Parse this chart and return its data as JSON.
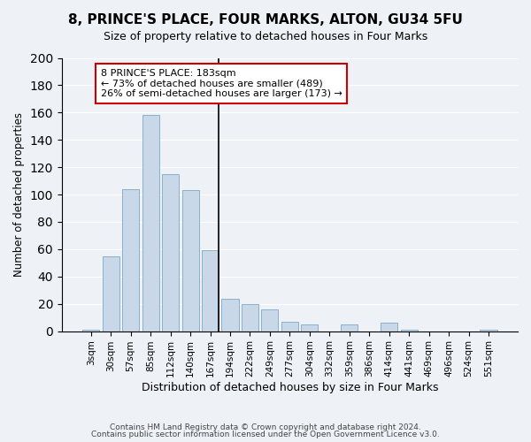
{
  "title": "8, PRINCE'S PLACE, FOUR MARKS, ALTON, GU34 5FU",
  "subtitle": "Size of property relative to detached houses in Four Marks",
  "xlabel": "Distribution of detached houses by size in Four Marks",
  "ylabel": "Number of detached properties",
  "bar_labels": [
    "3sqm",
    "30sqm",
    "57sqm",
    "85sqm",
    "112sqm",
    "140sqm",
    "167sqm",
    "194sqm",
    "222sqm",
    "249sqm",
    "277sqm",
    "304sqm",
    "332sqm",
    "359sqm",
    "386sqm",
    "414sqm",
    "441sqm",
    "469sqm",
    "496sqm",
    "524sqm",
    "551sqm"
  ],
  "bar_values": [
    1,
    55,
    104,
    158,
    115,
    103,
    59,
    24,
    20,
    16,
    7,
    5,
    0,
    5,
    0,
    6,
    1,
    0,
    0,
    0,
    1
  ],
  "bar_color": "#c8d8e8",
  "bar_edge_color": "#8ab0cc",
  "vline_x": 6.425,
  "ylim": [
    0,
    200
  ],
  "yticks": [
    0,
    20,
    40,
    60,
    80,
    100,
    120,
    140,
    160,
    180,
    200
  ],
  "annotation_title": "8 PRINCE'S PLACE: 183sqm",
  "annotation_line1": "← 73% of detached houses are smaller (489)",
  "annotation_line2": "26% of semi-detached houses are larger (173) →",
  "annotation_box_color": "#ffffff",
  "annotation_border_color": "#cc0000",
  "footer_line1": "Contains HM Land Registry data © Crown copyright and database right 2024.",
  "footer_line2": "Contains public sector information licensed under the Open Government Licence v3.0.",
  "background_color": "#eef2f6",
  "grid_color": "#ffffff"
}
